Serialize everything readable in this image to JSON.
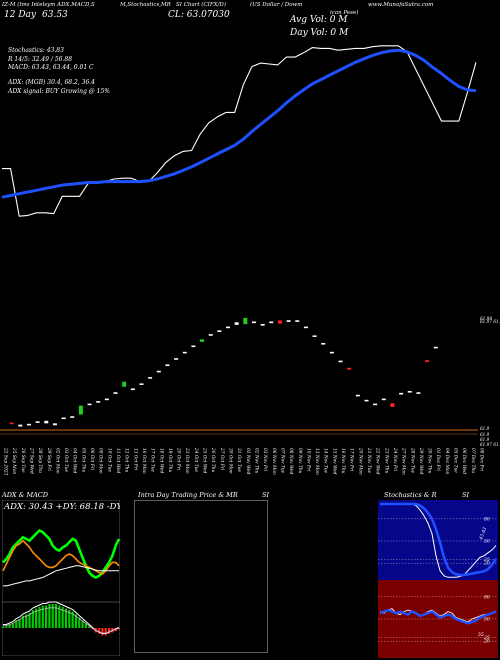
{
  "header": {
    "line1": [
      "IZ-M (Ims Intelsym ADX,MACD,S",
      "M,Stochastics,MR",
      "SI Chart (CIFX/D)",
      "(US Dollar / Dowm",
      "www.MunafaSutra.com"
    ],
    "line1_extra": "ican Pese)",
    "day_label": "12  Day",
    "day_value": "63.53",
    "close_label": "CL: 63.07030",
    "avg_vol": "Avg Vol: 0  M",
    "day_vol": "Day Vol: 0  M"
  },
  "info": {
    "stoch_label": "Stochastics: 43.83",
    "r_line": "R                                  14/5: 32.49 / 56.88",
    "macd_line": "MACD: 63.43,  63.44, 0.01 C",
    "adx_line": "ADX:                                  (MGB) 30.4,  68.2,  36.4",
    "adx_signal": "ADX  signal:                                              BUY Growing @ 15%"
  },
  "chart_data": [
    {
      "type": "line",
      "name": "price-ema-chart",
      "x": [
        "22 Sep 2023",
        "25 Sep Mon",
        "26 Sep Tue",
        "27 Sep Wed",
        "28 Sep Thu",
        "29 Sep Fri",
        "02 Oct Mon",
        "03 Oct Tue",
        "04 Oct Wed",
        "05 Oct Thu",
        "06 Oct Fri",
        "09 Oct Mon",
        "10 Oct Tue",
        "11 Oct Wed",
        "12 Oct Thu",
        "13 Oct Fri",
        "16 Oct Mon",
        "17 Oct Tue",
        "18 Oct Wed",
        "19 Oct Thu",
        "20 Oct Fri",
        "23 Oct Mon",
        "24 Oct Tue",
        "25 Oct Wed",
        "26 Oct Thu",
        "27 Oct Fri",
        "30 Oct Mon",
        "31 Oct Tue",
        "01 Nov Wed",
        "02 Nov Thu",
        "03 Nov Fri",
        "06 Nov Mon",
        "07 Nov Tue",
        "08 Nov Wed",
        "09 Nov Thu",
        "10 Nov Fri",
        "13 Nov Mon",
        "14 Nov Tue",
        "15 Nov Wed",
        "16 Nov Thu",
        "17 Nov Fri",
        "20 Nov Mon",
        "21 Nov Tue",
        "22 Nov Wed",
        "23 Nov Thu",
        "24 Nov Fri",
        "27 Nov Mon",
        "28 Nov Tue",
        "29 Nov Wed",
        "30 Nov Thu",
        "01 Dec Fri",
        "04 Dec Mon",
        "05 Dec Tue",
        "06 Dec Wed",
        "07 Dec Thu",
        "08 Dec Fri"
      ],
      "series": [
        {
          "values": [
            61.95,
            61.95,
            61.4,
            61.41,
            61.44,
            61.44,
            61.43,
            61.63,
            61.63,
            61.63,
            61.78,
            61.78,
            61.8,
            61.83,
            61.84,
            61.84,
            61.8,
            61.8,
            61.9,
            62.02,
            62.1,
            62.15,
            62.16,
            62.35,
            62.48,
            62.55,
            62.6,
            62.6,
            62.92,
            63.13,
            63.17,
            63.16,
            63.15,
            63.24,
            63.24,
            63.29,
            63.35,
            63.34,
            63.34,
            63.32,
            63.33,
            63.34,
            63.34,
            63.36,
            63.37,
            63.37,
            63.37,
            63.3,
            63.1,
            62.9,
            62.7,
            62.5,
            62.5,
            62.5,
            62.83,
            63.18
          ],
          "color": "#ffffff"
        },
        {
          "values": [
            61.62,
            61.64,
            61.66,
            61.68,
            61.7,
            61.72,
            61.74,
            61.76,
            61.77,
            61.78,
            61.79,
            61.79,
            61.8,
            61.8,
            61.8,
            61.8,
            61.8,
            61.81,
            61.83,
            61.86,
            61.89,
            61.93,
            61.97,
            62.02,
            62.07,
            62.12,
            62.17,
            62.22,
            62.29,
            62.38,
            62.46,
            62.54,
            62.62,
            62.71,
            62.79,
            62.86,
            62.93,
            62.98,
            63.03,
            63.08,
            63.13,
            63.18,
            63.22,
            63.26,
            63.29,
            63.31,
            63.32,
            63.3,
            63.26,
            63.2,
            63.12,
            63.05,
            62.97,
            62.9,
            62.86,
            62.85
          ],
          "color": "#1e50ff"
        }
      ],
      "ylim": [
        60.2,
        63.9
      ]
    },
    {
      "type": "bar",
      "name": "price-bars-chart",
      "ylim": [
        60.9,
        62.8
      ],
      "ytick_labels": [
        "61.99",
        "61.97 61.99",
        "61.9",
        "61.9",
        "61.9",
        "61.97 61.90"
      ],
      "boxes": [
        {
          "i": 1,
          "o": 61.1,
          "c": 61.1,
          "color": "#ff2020"
        },
        {
          "i": 2,
          "o": 61.05,
          "c": 61.08,
          "color": "#ffffff"
        },
        {
          "i": 3,
          "o": 61.06,
          "c": 61.08,
          "color": "#ffffff"
        },
        {
          "i": 4,
          "o": 61.1,
          "c": 61.12,
          "color": "#ffffff"
        },
        {
          "i": 5,
          "o": 61.1,
          "c": 61.14,
          "color": "#ffffff"
        },
        {
          "i": 6,
          "o": 61.07,
          "c": 61.1,
          "color": "#ffffff"
        },
        {
          "i": 7,
          "o": 61.16,
          "c": 61.18,
          "color": "#ffffff"
        },
        {
          "i": 8,
          "o": 61.2,
          "c": 61.2,
          "color": "#ffffff"
        },
        {
          "i": 9,
          "o": 61.24,
          "c": 61.38,
          "color": "#22cc22"
        },
        {
          "i": 10,
          "o": 61.4,
          "c": 61.4,
          "color": "#ffffff"
        },
        {
          "i": 11,
          "o": 61.44,
          "c": 61.44,
          "color": "#ffffff"
        },
        {
          "i": 12,
          "o": 61.48,
          "c": 61.48,
          "color": "#ffffff"
        },
        {
          "i": 13,
          "o": 61.58,
          "c": 61.58,
          "color": "#ffffff"
        },
        {
          "i": 14,
          "o": 61.68,
          "c": 61.76,
          "color": "#22cc22"
        },
        {
          "i": 15,
          "o": 61.64,
          "c": 61.64,
          "color": "#ffffff"
        },
        {
          "i": 16,
          "o": 61.72,
          "c": 61.72,
          "color": "#ffffff"
        },
        {
          "i": 17,
          "o": 61.82,
          "c": 61.82,
          "color": "#ffffff"
        },
        {
          "i": 18,
          "o": 61.92,
          "c": 61.92,
          "color": "#ffffff"
        },
        {
          "i": 19,
          "o": 62.02,
          "c": 62.02,
          "color": "#ffffff"
        },
        {
          "i": 20,
          "o": 62.12,
          "c": 62.12,
          "color": "#ffffff"
        },
        {
          "i": 21,
          "o": 62.22,
          "c": 62.22,
          "color": "#ffffff"
        },
        {
          "i": 22,
          "o": 62.32,
          "c": 62.32,
          "color": "#ffffff"
        },
        {
          "i": 23,
          "o": 62.39,
          "c": 62.43,
          "color": "#22cc22"
        },
        {
          "i": 24,
          "o": 62.5,
          "c": 62.5,
          "color": "#ffffff"
        },
        {
          "i": 25,
          "o": 62.56,
          "c": 62.56,
          "color": "#ffffff"
        },
        {
          "i": 26,
          "o": 62.62,
          "c": 62.62,
          "color": "#ffffff"
        },
        {
          "i": 27,
          "o": 62.66,
          "c": 62.7,
          "color": "#ffffff"
        },
        {
          "i": 28,
          "o": 62.67,
          "c": 62.77,
          "color": "#22cc22"
        },
        {
          "i": 29,
          "o": 62.7,
          "c": 62.7,
          "color": "#ffffff"
        },
        {
          "i": 30,
          "o": 62.66,
          "c": 62.66,
          "color": "#ffffff"
        },
        {
          "i": 31,
          "o": 62.7,
          "c": 62.7,
          "color": "#ffffff"
        },
        {
          "i": 32,
          "o": 62.68,
          "c": 62.73,
          "color": "#ff2020"
        },
        {
          "i": 33,
          "o": 62.72,
          "c": 62.72,
          "color": "#ffffff"
        },
        {
          "i": 34,
          "o": 62.72,
          "c": 62.72,
          "color": "#ffffff"
        },
        {
          "i": 35,
          "o": 62.62,
          "c": 62.62,
          "color": "#ffffff"
        },
        {
          "i": 36,
          "o": 62.48,
          "c": 62.48,
          "color": "#ffffff"
        },
        {
          "i": 37,
          "o": 62.36,
          "c": 62.36,
          "color": "#ffffff"
        },
        {
          "i": 38,
          "o": 62.22,
          "c": 62.22,
          "color": "#ffffff"
        },
        {
          "i": 39,
          "o": 62.08,
          "c": 62.08,
          "color": "#ffffff"
        },
        {
          "i": 40,
          "o": 61.95,
          "c": 61.98,
          "color": "#ff2020"
        },
        {
          "i": 41,
          "o": 61.54,
          "c": 61.54,
          "color": "#ffffff"
        },
        {
          "i": 42,
          "o": 61.46,
          "c": 61.46,
          "color": "#ffffff"
        },
        {
          "i": 43,
          "o": 61.4,
          "c": 61.4,
          "color": "#ffffff"
        },
        {
          "i": 44,
          "o": 61.46,
          "c": 61.48,
          "color": "#ffffff"
        },
        {
          "i": 45,
          "o": 61.36,
          "c": 61.42,
          "color": "#ff2020"
        },
        {
          "i": 46,
          "o": 61.57,
          "c": 61.57,
          "color": "#ffffff"
        },
        {
          "i": 47,
          "o": 61.6,
          "c": 61.6,
          "color": "#ffffff"
        },
        {
          "i": 48,
          "o": 61.58,
          "c": 61.58,
          "color": "#ffffff"
        },
        {
          "i": 49,
          "o": 62.07,
          "c": 62.1,
          "color": "#ff2020"
        },
        {
          "i": 50,
          "o": 62.3,
          "c": 62.3,
          "color": "#ffffff"
        }
      ]
    },
    {
      "type": "line",
      "name": "adx-macd-chart",
      "adx_text": "ADX: 30.43 +DY: 68.18 -DY: 36.36",
      "ylim": [
        0,
        100
      ],
      "series": [
        {
          "name": "+DY",
          "color": "#00ff00",
          "values": [
            40,
            44,
            50,
            58,
            62,
            66,
            70,
            68,
            66,
            70,
            74,
            78,
            76,
            72,
            68,
            60,
            56,
            54,
            58,
            60,
            64,
            68,
            66,
            56,
            46,
            36,
            28,
            24,
            22,
            24,
            28,
            34,
            40,
            48,
            60,
            68
          ]
        },
        {
          "name": "-DY",
          "color": "#ff8c00",
          "values": [
            30,
            38,
            46,
            54,
            60,
            62,
            66,
            62,
            58,
            52,
            48,
            44,
            40,
            36,
            34,
            34,
            36,
            40,
            44,
            48,
            50,
            48,
            44,
            40,
            38,
            36,
            34,
            32,
            30,
            28,
            26,
            30,
            36,
            40,
            40,
            36
          ]
        },
        {
          "name": "ADX",
          "color": "#ffffff",
          "values": [
            12,
            12,
            13,
            14,
            15,
            16,
            17,
            18,
            18,
            19,
            20,
            21,
            22,
            24,
            26,
            28,
            30,
            31,
            32,
            33,
            34,
            35,
            36,
            36,
            35,
            34,
            33,
            32,
            31,
            30,
            30,
            30,
            30,
            30,
            30,
            30
          ]
        }
      ],
      "macd": [
        0.01,
        0.01,
        0.02,
        0.03,
        0.05,
        0.06,
        0.08,
        0.09,
        0.1,
        0.12,
        0.13,
        0.14,
        0.15,
        0.15,
        0.16,
        0.16,
        0.16,
        0.15,
        0.14,
        0.13,
        0.12,
        0.11,
        0.09,
        0.07,
        0.05,
        0.03,
        0.01,
        -0.01,
        -0.03,
        -0.04,
        -0.05,
        -0.05,
        -0.04,
        -0.03,
        -0.02,
        -0.01
      ]
    },
    {
      "type": "line",
      "name": "si-chart",
      "title_a": "Intra  Day Trading Price  & MR",
      "title_b": "SI"
    },
    {
      "type": "line",
      "name": "stochastics-rsi-chart",
      "title_a": "Stochastics & R",
      "title_b": "SI",
      "stoch_ticks": [
        "80",
        "50",
        "25",
        "20"
      ],
      "rsi_ticks": [
        "80",
        "50",
        "25",
        "20"
      ],
      "stoch_label": "43.83",
      "rsi_label": "55",
      "ylim": [
        0,
        100
      ],
      "stoch_series": [
        {
          "color": "#ffffff",
          "values": [
            100,
            100,
            100,
            100,
            100,
            100,
            100,
            100,
            100,
            98,
            92,
            84,
            74,
            60,
            30,
            10,
            3,
            1,
            1,
            1,
            2,
            4,
            10,
            16,
            22,
            28,
            30,
            34,
            38,
            44
          ]
        },
        {
          "color": "#1e50ff",
          "values": [
            100,
            100,
            100,
            100,
            100,
            100,
            100,
            100,
            100,
            100,
            98,
            94,
            88,
            80,
            66,
            48,
            28,
            14,
            8,
            5,
            4,
            4,
            5,
            6,
            7,
            8,
            9,
            12,
            18,
            26
          ]
        }
      ],
      "rsi_series": [
        {
          "color": "#ffffff",
          "values": [
            60,
            58,
            62,
            64,
            58,
            56,
            60,
            62,
            60,
            58,
            54,
            56,
            60,
            62,
            58,
            54,
            56,
            60,
            58,
            52,
            50,
            48,
            46,
            50,
            52,
            54,
            56,
            56,
            58,
            60
          ]
        },
        {
          "color": "#1e50ff",
          "values": [
            58,
            60,
            62,
            60,
            58,
            60,
            58,
            56,
            60,
            58,
            54,
            56,
            58,
            60,
            56,
            52,
            54,
            56,
            54,
            50,
            48,
            46,
            44,
            46,
            48,
            52,
            54,
            56,
            58,
            60
          ]
        }
      ]
    }
  ]
}
